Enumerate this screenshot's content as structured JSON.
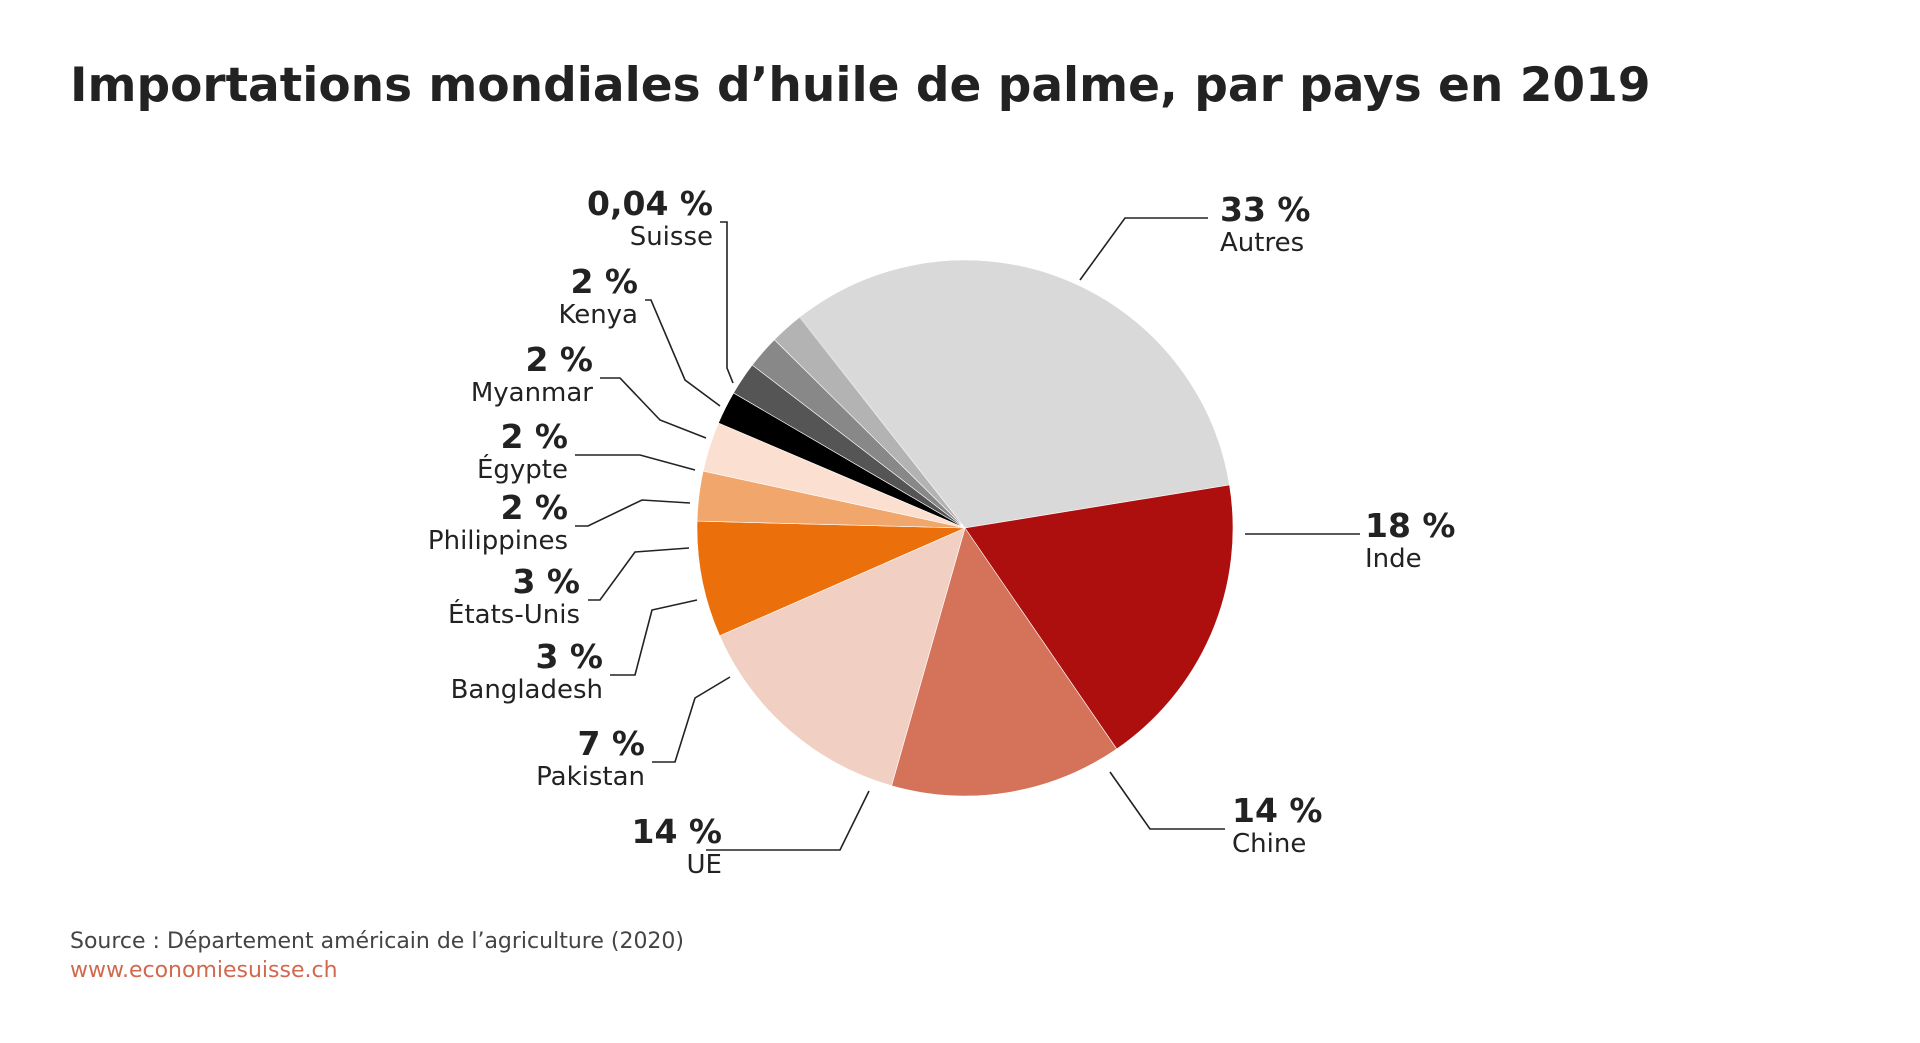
{
  "title": "Importations mondiales d’huile de palme, par pays en 2019",
  "source": "Source : Département américain de l’agriculture (2020)",
  "website": "www.economiesuisse.ch",
  "chart_data": {
    "type": "pie",
    "slices": [
      {
        "label": "Autres",
        "value_label": "33 %",
        "value": 33,
        "color": "#d9d9d9"
      },
      {
        "label": "Inde",
        "value_label": "18 %",
        "value": 18,
        "color": "#ad0f0f"
      },
      {
        "label": "Chine",
        "value_label": "14 %",
        "value": 14,
        "color": "#d4735a"
      },
      {
        "label": "UE",
        "value_label": "14 %",
        "value": 14,
        "color": "#f1d0c3"
      },
      {
        "label": "Pakistan",
        "value_label": "7 %",
        "value": 7,
        "color": "#eb6f0b"
      },
      {
        "label": "Bangladesh",
        "value_label": "3 %",
        "value": 3,
        "color": "#f1a66c"
      },
      {
        "label": "États-Unis",
        "value_label": "3 %",
        "value": 3,
        "color": "#fbe0d2"
      },
      {
        "label": "Philippines",
        "value_label": "2 %",
        "value": 2,
        "color": "#000000"
      },
      {
        "label": "Égypte",
        "value_label": "2 %",
        "value": 2,
        "color": "#555555"
      },
      {
        "label": "Myanmar",
        "value_label": "2 %",
        "value": 2,
        "color": "#888888"
      },
      {
        "label": "Kenya",
        "value_label": "2 %",
        "value": 2,
        "color": "#b3b3b3"
      },
      {
        "label": "Suisse",
        "value_label": "0,04 %",
        "value": 0.04,
        "color": "#c8c8c8"
      }
    ]
  }
}
